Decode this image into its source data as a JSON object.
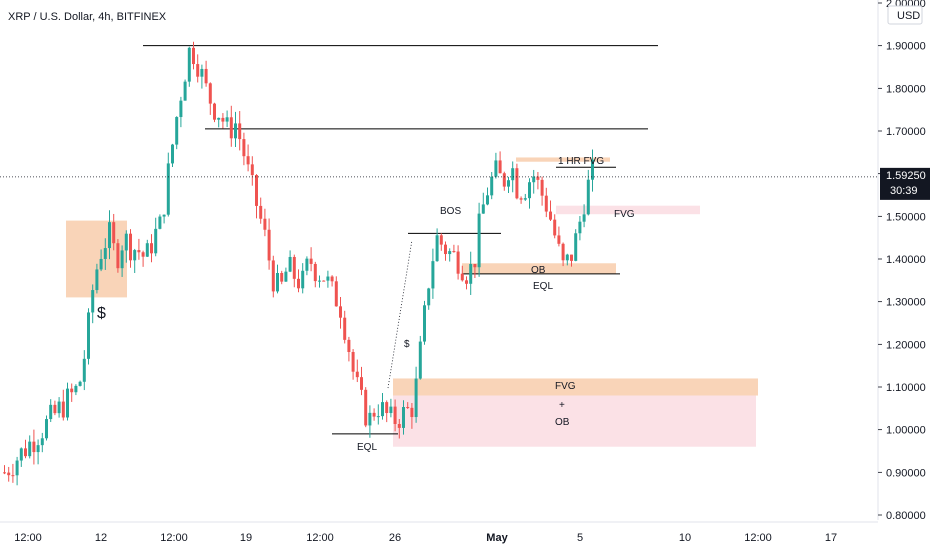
{
  "chart_data": {
    "type": "candlestick",
    "title": "XRP / U.S. Dollar, 4h, BITFINEX",
    "currency_label": "USD",
    "y_ticks": [
      "0.80000",
      "0.90000",
      "1.00000",
      "1.10000",
      "1.20000",
      "1.30000",
      "1.40000",
      "1.50000",
      "1.60000",
      "1.70000",
      "1.80000",
      "1.90000",
      "2.00000"
    ],
    "x_ticks": [
      "12:00",
      "12",
      "12:00",
      "19",
      "12:00",
      "26",
      "May",
      "5",
      "10",
      "12:00",
      "17"
    ],
    "ylim": [
      0.78,
      2.02
    ],
    "last_price": {
      "label": "1.59250",
      "countdown": "30:39",
      "value": 1.5925,
      "color": "#26a69a"
    },
    "colors": {
      "up": "#26a69a",
      "down": "#ef5350",
      "line": "#000000",
      "orange_zone": "#f7c6a0",
      "pink_zone": "#f8cdd6"
    },
    "path_closes": [
      0.9,
      0.92,
      0.94,
      0.96,
      0.98,
      1.0,
      1.02,
      1.04,
      1.06,
      1.08,
      1.1,
      1.2,
      1.35,
      1.42,
      1.46,
      1.4,
      1.45,
      1.43,
      1.42,
      1.4,
      1.45,
      1.48,
      1.6,
      1.72,
      1.82,
      1.9,
      1.86,
      1.8,
      1.76,
      1.74,
      1.7,
      1.72,
      1.66,
      1.58,
      1.52,
      1.45,
      1.36,
      1.32,
      1.38,
      1.36,
      1.34,
      1.4,
      1.37,
      1.36,
      1.32,
      1.3,
      1.22,
      1.12,
      1.06,
      1.02,
      1.06,
      1.04,
      1.02,
      1.03,
      1.04,
      1.06,
      1.2,
      1.35,
      1.45,
      1.43,
      1.41,
      1.4,
      1.37,
      1.38,
      1.5,
      1.57,
      1.6,
      1.58,
      1.63,
      1.56,
      1.57,
      1.6,
      1.56,
      1.52,
      1.45,
      1.38,
      1.4,
      1.46,
      1.55,
      1.6
    ],
    "levels": [
      {
        "y": 1.9,
        "label": ""
      },
      {
        "y": 1.705,
        "label": ""
      },
      {
        "y": 1.46,
        "label": ""
      },
      {
        "y": 1.365,
        "label": ""
      },
      {
        "y": 0.99,
        "label": ""
      },
      {
        "y": 1.615,
        "label": ""
      }
    ],
    "zones": [
      {
        "kind": "orange",
        "from": 1.31,
        "to": 1.49
      },
      {
        "kind": "orange",
        "from": 1.08,
        "to": 1.12
      },
      {
        "kind": "pink",
        "from": 0.96,
        "to": 1.08
      },
      {
        "kind": "orange",
        "from": 1.365,
        "to": 1.39
      },
      {
        "kind": "pink",
        "from": 1.505,
        "to": 1.525
      },
      {
        "kind": "orange",
        "from": 1.628,
        "to": 1.638
      }
    ],
    "annotations": {
      "dollar_1": "$",
      "dollar_2": "$",
      "bos": "BOS",
      "ob_1": "OB",
      "eql_1": "EQL",
      "eql_2": "EQL",
      "fvg_1hr": "1 HR FVG",
      "fvg_right": "FVG",
      "fvg_low": "FVG",
      "plus": "+",
      "ob_low": "OB"
    }
  }
}
